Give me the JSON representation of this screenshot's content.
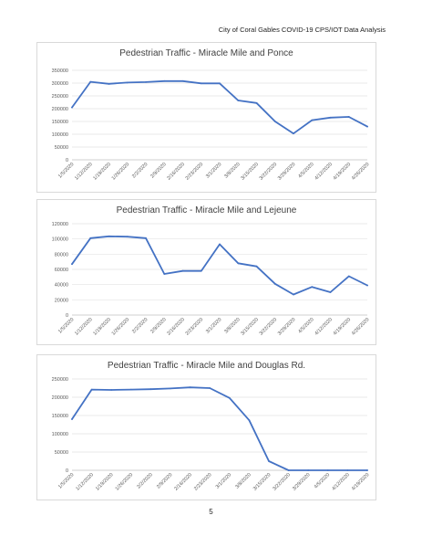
{
  "header": {
    "text": "City of Coral Gables COVID-19 CPS/IOT Data Analysis"
  },
  "page_number": "5",
  "line_color": "#4472c4",
  "chart_data": [
    {
      "type": "line",
      "title": "Pedestrian Traffic - Miracle Mile and Ponce",
      "categories": [
        "1/5/2020",
        "1/12/2020",
        "1/19/2020",
        "1/26/2020",
        "2/2/2020",
        "2/9/2020",
        "2/16/2020",
        "2/23/2020",
        "3/1/2020",
        "3/8/2020",
        "3/15/2020",
        "3/22/2020",
        "3/29/2020",
        "4/5/2020",
        "4/12/2020",
        "4/19/2020",
        "4/26/2020"
      ],
      "values": [
        205000,
        305000,
        297000,
        302000,
        304000,
        308000,
        308000,
        299000,
        299000,
        232000,
        222000,
        150000,
        103000,
        155000,
        165000,
        168000,
        130000
      ],
      "yticks": [
        "0",
        "50000",
        "100000",
        "150000",
        "200000",
        "250000",
        "300000",
        "350000"
      ],
      "ylim": [
        0,
        350000
      ],
      "grid": true
    },
    {
      "type": "line",
      "title": "Pedestrian Traffic - Miracle Mile and Lejeune",
      "categories": [
        "1/5/2020",
        "1/12/2020",
        "1/19/2020",
        "1/26/2020",
        "2/2/2020",
        "2/9/2020",
        "2/16/2020",
        "2/23/2020",
        "3/1/2020",
        "3/8/2020",
        "3/15/2020",
        "3/22/2020",
        "3/29/2020",
        "4/5/2020",
        "4/12/2020",
        "4/19/2020",
        "4/26/2020"
      ],
      "values": [
        67000,
        101000,
        103500,
        103000,
        101000,
        54000,
        58000,
        58000,
        93000,
        68000,
        64000,
        41000,
        27000,
        37000,
        30000,
        51000,
        39000
      ],
      "yticks": [
        "0",
        "20000",
        "40000",
        "60000",
        "80000",
        "100000",
        "120000"
      ],
      "ylim": [
        0,
        120000
      ],
      "grid": true
    },
    {
      "type": "line",
      "title": "Pedestrian Traffic - Miracle Mile and Douglas Rd.",
      "categories": [
        "1/5/2020",
        "1/12/2020",
        "1/19/2020",
        "1/26/2020",
        "2/2/2020",
        "2/9/2020",
        "2/16/2020",
        "2/23/2020",
        "3/1/2020",
        "3/8/2020",
        "3/15/2020",
        "3/22/2020",
        "3/29/2020",
        "4/5/2020",
        "4/12/2020",
        "4/19/2020"
      ],
      "values": [
        140000,
        221000,
        220000,
        221000,
        222000,
        224000,
        227000,
        225000,
        198000,
        137000,
        25000,
        0,
        0,
        0,
        0,
        0
      ],
      "yticks": [
        "0",
        "50000",
        "100000",
        "150000",
        "200000",
        "250000"
      ],
      "ylim": [
        0,
        250000
      ],
      "grid": true
    }
  ]
}
